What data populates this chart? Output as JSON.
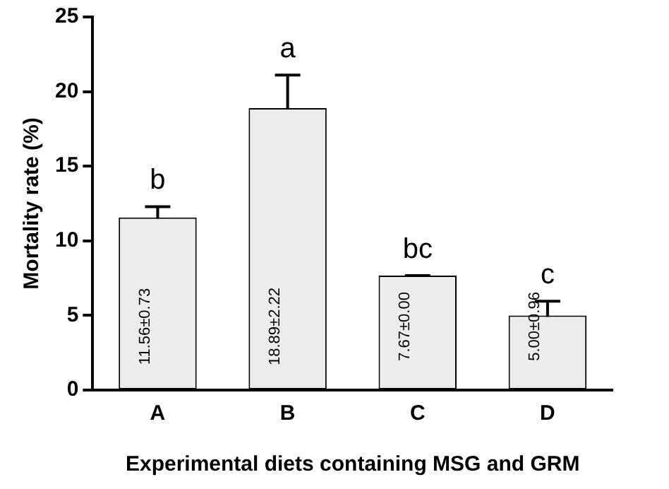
{
  "chart_data": {
    "type": "bar",
    "xlabel": "Experimental diets containing MSG and GRM",
    "ylabel": "Mortality rate (%)",
    "categories": [
      "A",
      "B",
      "C",
      "D"
    ],
    "values": [
      11.56,
      18.89,
      7.67,
      5.0
    ],
    "errors": [
      0.73,
      2.22,
      0.0,
      0.96
    ],
    "value_labels": [
      "11.56±0.73",
      "18.89±2.22",
      "7.67±0.00",
      "5.00±0.96"
    ],
    "color": "#ececec",
    "ylim": [
      0,
      25
    ],
    "yticks": [
      0,
      5,
      10,
      15,
      20,
      25
    ],
    "grid": false,
    "legend": false,
    "annotations": [
      {
        "text": "b",
        "x": "A",
        "y": 12.29
      },
      {
        "text": "a",
        "x": "B",
        "y": 21.11
      },
      {
        "text": "bc",
        "x": "C",
        "y": 7.67
      },
      {
        "text": "c",
        "x": "D",
        "y": 5.96
      }
    ]
  }
}
